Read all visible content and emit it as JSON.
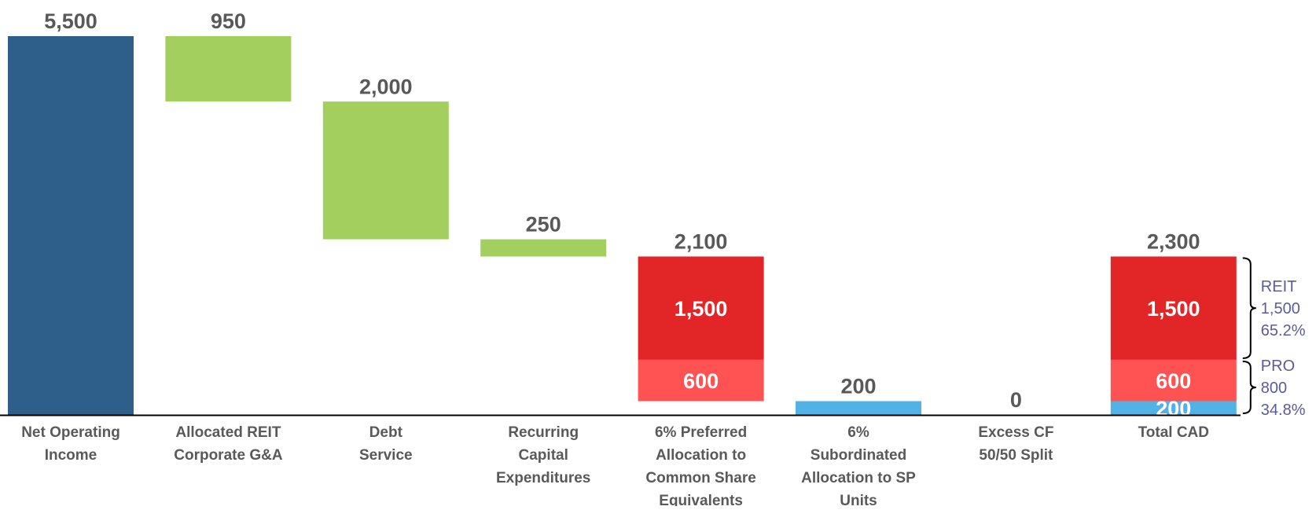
{
  "chart_data": {
    "type": "bar",
    "subtype": "waterfall",
    "title": "",
    "xlabel": "",
    "ylabel": "",
    "ylim": [
      0,
      5500
    ],
    "grid": false,
    "legend": "none",
    "categories": [
      [
        "Net Operating",
        "Income"
      ],
      [
        "Allocated REIT",
        "Corporate G&A"
      ],
      [
        "Debt",
        "Service"
      ],
      [
        "Recurring",
        "Capital",
        "Expenditures"
      ],
      [
        "6% Preferred",
        "Allocation to",
        "Common Share",
        "Equivalents"
      ],
      [
        "6%",
        "Subordinated",
        "Allocation to SP",
        "Units"
      ],
      [
        "Excess CF",
        "50/50 Split"
      ],
      [
        "Total CAD"
      ]
    ],
    "bars": [
      {
        "base": 0,
        "total_label": "5,500",
        "segments": [
          {
            "value": 5500,
            "color": "#2e5f8a",
            "label": ""
          }
        ]
      },
      {
        "base": 4550,
        "total_label": "950",
        "segments": [
          {
            "value": 950,
            "color": "#a3cf5e",
            "label": ""
          }
        ]
      },
      {
        "base": 2550,
        "total_label": "2,000",
        "segments": [
          {
            "value": 2000,
            "color": "#a3cf5e",
            "label": ""
          }
        ]
      },
      {
        "base": 2300,
        "total_label": "250",
        "segments": [
          {
            "value": 250,
            "color": "#a3cf5e",
            "label": ""
          }
        ]
      },
      {
        "base": 200,
        "total_label": "2,100",
        "segments": [
          {
            "value": 600,
            "color": "#ff5252",
            "label": "600"
          },
          {
            "value": 1500,
            "color": "#e22526",
            "label": "1,500"
          }
        ]
      },
      {
        "base": 0,
        "total_label": "200",
        "segments": [
          {
            "value": 200,
            "color": "#52b2e5",
            "label": ""
          }
        ]
      },
      {
        "base": 0,
        "total_label": "0",
        "segments": []
      },
      {
        "base": 0,
        "total_label": "2,300",
        "segments": [
          {
            "value": 200,
            "color": "#52b2e5",
            "label": "200"
          },
          {
            "value": 600,
            "color": "#ff5252",
            "label": "600"
          },
          {
            "value": 1500,
            "color": "#e22526",
            "label": "1,500"
          }
        ]
      }
    ],
    "annotations": [
      {
        "from": 800,
        "to": 2300,
        "lines": [
          "REIT",
          "1,500",
          "65.2%"
        ]
      },
      {
        "from": 0,
        "to": 800,
        "lines": [
          "PRO",
          "800",
          "34.8%"
        ]
      }
    ]
  }
}
